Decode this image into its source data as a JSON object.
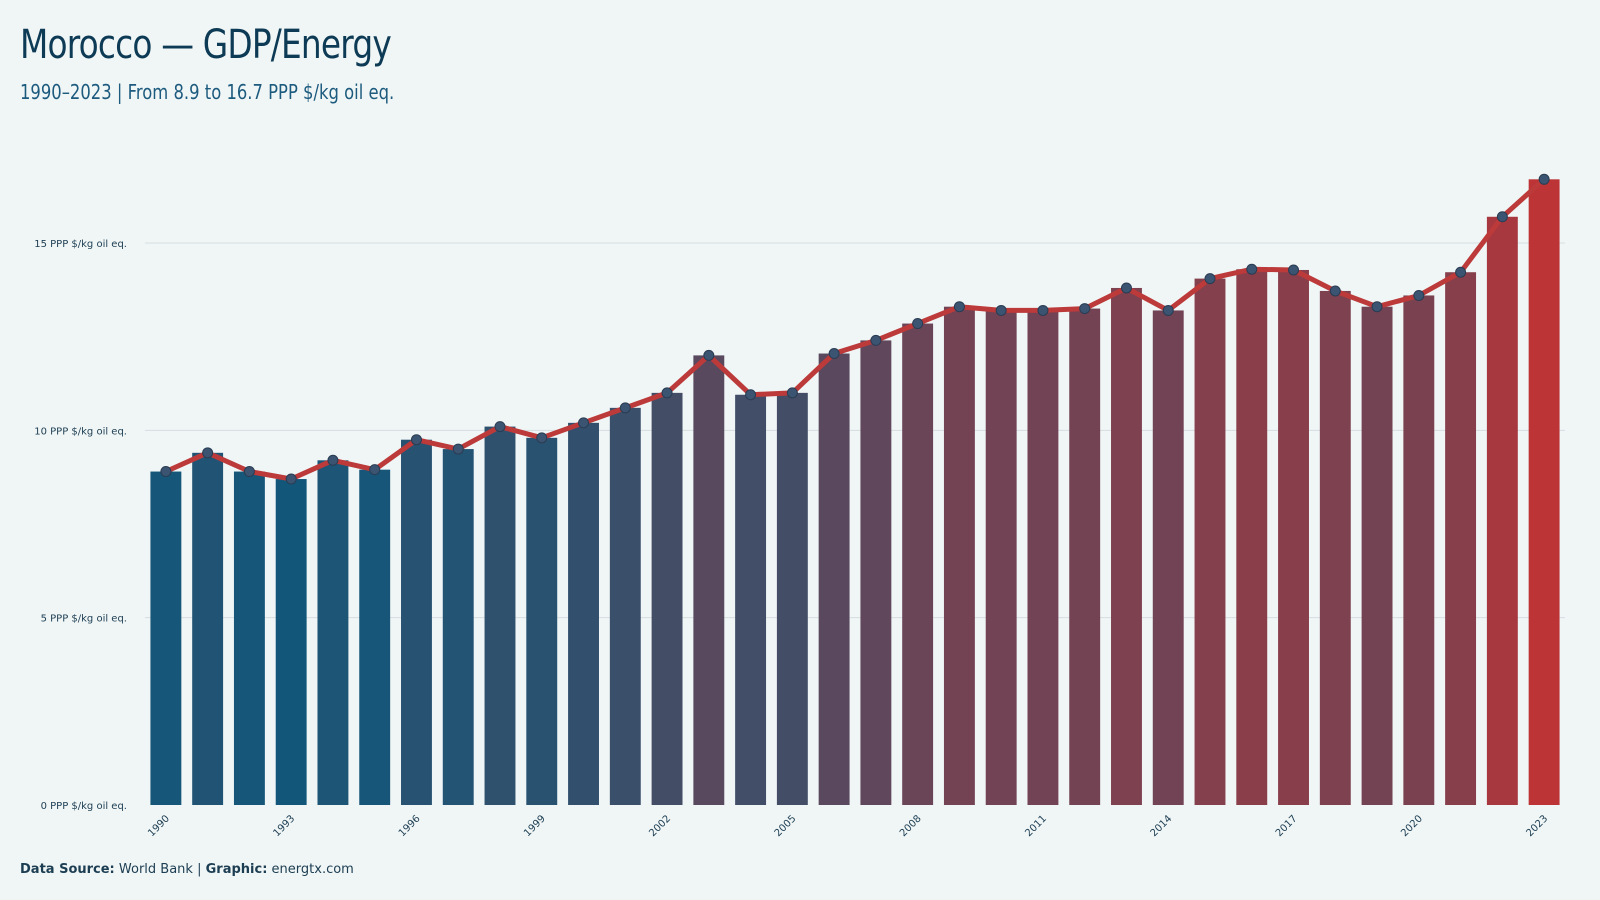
{
  "title": "Morocco — GDP/Energy",
  "subtitle": "1990–2023 | From 8.9 to 16.7 PPP $/kg oil eq.",
  "footer": {
    "source_label": "Data Source:",
    "source_value": "World Bank",
    "graphic_label": "Graphic:",
    "graphic_value": "energtx.com",
    "separator": "|"
  },
  "colors": {
    "background": "#f0f6f6",
    "bar_start": "#12577a",
    "bar_end": "#bc3436",
    "line": "#bc3a3a",
    "marker_fill": "#3b5472",
    "gridline": "#d6dde0"
  },
  "chart_data": {
    "type": "bar",
    "title": "Morocco — GDP/Energy",
    "subtitle": "1990–2023 | From 8.9 to 16.7 PPP $/kg oil eq.",
    "xlabel": "",
    "ylabel": "",
    "ylim": [
      0,
      17.5
    ],
    "grid": true,
    "y_ticks": [
      {
        "value": 0,
        "label": "0 PPP $/kg oil eq."
      },
      {
        "value": 5,
        "label": "5 PPP $/kg oil eq."
      },
      {
        "value": 10,
        "label": "10 PPP $/kg oil eq."
      },
      {
        "value": 15,
        "label": "15 PPP $/kg oil eq."
      }
    ],
    "x_tick_labels": [
      "1990",
      "1993",
      "1996",
      "1999",
      "2002",
      "2005",
      "2008",
      "2011",
      "2014",
      "2017",
      "2020",
      "2023"
    ],
    "categories": [
      "1990",
      "1991",
      "1992",
      "1993",
      "1994",
      "1995",
      "1996",
      "1997",
      "1998",
      "1999",
      "2000",
      "2001",
      "2002",
      "2003",
      "2004",
      "2005",
      "2006",
      "2007",
      "2008",
      "2009",
      "2010",
      "2011",
      "2012",
      "2013",
      "2014",
      "2015",
      "2016",
      "2017",
      "2018",
      "2019",
      "2020",
      "2021",
      "2022",
      "2023"
    ],
    "values": [
      8.9,
      9.4,
      8.9,
      8.7,
      9.2,
      8.95,
      9.75,
      9.5,
      10.1,
      9.8,
      10.2,
      10.6,
      11.0,
      12.0,
      10.95,
      11.0,
      12.05,
      12.4,
      12.85,
      13.3,
      13.2,
      13.2,
      13.25,
      13.8,
      13.2,
      14.05,
      14.3,
      14.28,
      13.72,
      13.3,
      13.6,
      14.22,
      15.7,
      16.7
    ],
    "overlay": {
      "type": "line",
      "with_markers": true
    }
  }
}
